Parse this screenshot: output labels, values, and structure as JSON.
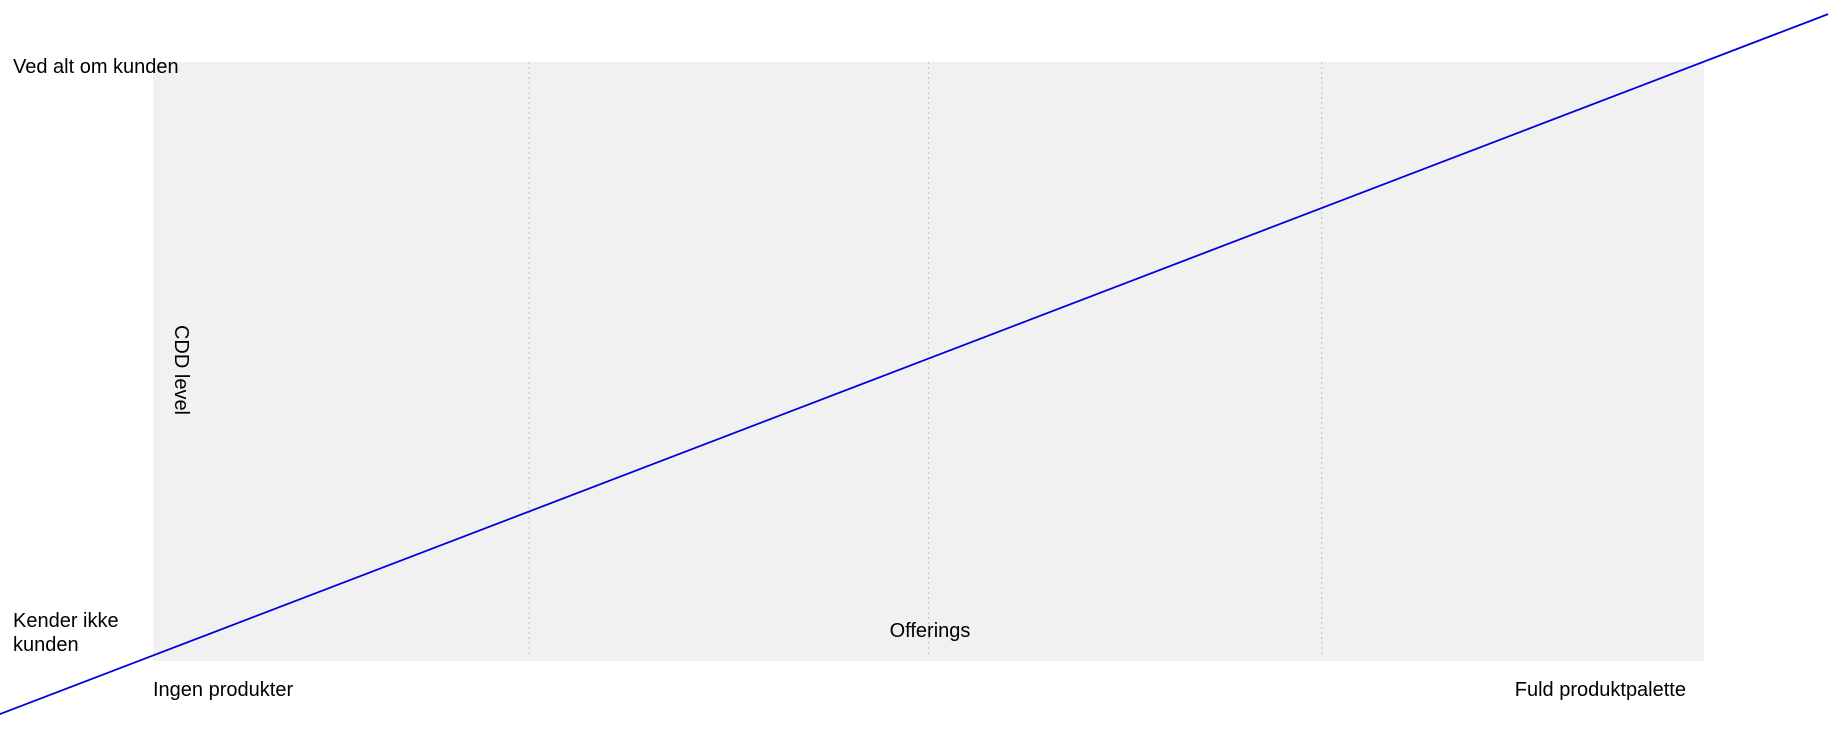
{
  "chart_data": {
    "type": "line",
    "title": "",
    "xlabel": "Offerings",
    "ylabel": "CDD level",
    "x_tick_labels": {
      "start": "Ingen produkter",
      "end": "Fuld produktpalette"
    },
    "y_tick_labels": {
      "start": "Kender ikke kunden",
      "end": "Ved alt om kunden"
    },
    "xlim": [
      0,
      1
    ],
    "ylim": [
      0,
      1
    ],
    "grid": {
      "x": true,
      "y": false,
      "style": "dotted",
      "x_positions": [
        0.2425,
        0.5,
        0.7535
      ]
    },
    "series": [
      {
        "x": [
          -0.1,
          1.08
        ],
        "y": [
          -0.09,
          1.08
        ]
      }
    ],
    "colors": {
      "line": "#0000dd",
      "plot_background": "#f1f1f1",
      "grid": "#c8c8c8",
      "text": "#000000"
    }
  }
}
